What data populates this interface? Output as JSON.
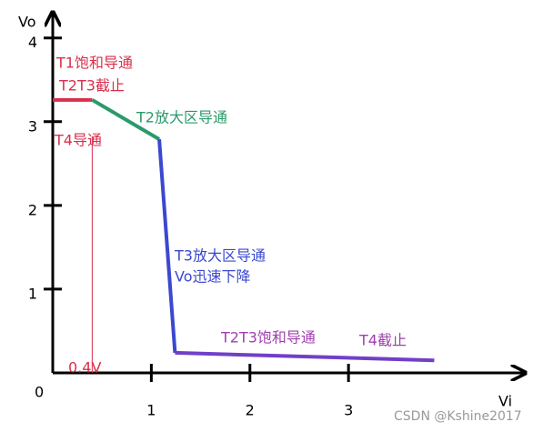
{
  "chart_data": {
    "type": "line",
    "x_label": "Vi",
    "y_label": "Vo",
    "origin_label": "0",
    "xlim": [
      0,
      4.77
    ],
    "ylim": [
      0,
      4.29
    ],
    "xticks": [
      1,
      2,
      3
    ],
    "yticks": [
      1,
      2,
      3,
      4
    ],
    "series": [
      {
        "color": "#d8304c",
        "x": [
          0,
          0.4
        ],
        "values": [
          3.26,
          3.26
        ]
      },
      {
        "color": "#2a9a6a",
        "x": [
          0.4,
          1.08
        ],
        "values": [
          3.26,
          2.79
        ]
      },
      {
        "color": "#3b48d0",
        "x": [
          1.08,
          1.24
        ],
        "values": [
          2.79,
          0.24
        ]
      },
      {
        "color": "#7040c8",
        "x": [
          1.24,
          3.87
        ],
        "values": [
          0.24,
          0.15
        ]
      }
    ],
    "vline": {
      "x": 0.4,
      "color": "#d8304c"
    },
    "annotations": [
      {
        "text": "T1饱和导通",
        "color": "#d8304c"
      },
      {
        "text": "T2T3截止",
        "color": "#d8304c"
      },
      {
        "text": "T2放大区导通",
        "color": "#2a9a6a"
      },
      {
        "text": "T4导通",
        "color": "#d8304c"
      },
      {
        "text": "T3放大区导通",
        "color": "#3b48d0"
      },
      {
        "text": "Vo迅速下降",
        "color": "#3b48d0"
      },
      {
        "text": "T2T3饱和导通",
        "color": "#a040b0"
      },
      {
        "text": "T4截止",
        "color": "#a040b0"
      },
      {
        "text": "0.4V",
        "color": "#d8304c"
      }
    ],
    "watermark": "CSDN @Kshine2017"
  }
}
